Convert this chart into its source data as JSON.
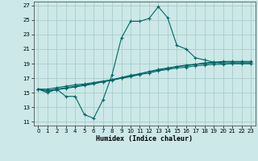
{
  "xlabel": "Humidex (Indice chaleur)",
  "background_color": "#cce8e8",
  "grid_color": "#aacccc",
  "line_color": "#006666",
  "xlim": [
    -0.5,
    23.5
  ],
  "ylim": [
    10.5,
    27.5
  ],
  "yticks": [
    11,
    13,
    15,
    17,
    19,
    21,
    23,
    25,
    27
  ],
  "xticks": [
    0,
    1,
    2,
    3,
    4,
    5,
    6,
    7,
    8,
    9,
    10,
    11,
    12,
    13,
    14,
    15,
    16,
    17,
    18,
    19,
    20,
    21,
    22,
    23
  ],
  "series": [
    {
      "x": [
        0,
        1,
        2,
        3,
        4,
        5,
        6,
        7,
        8,
        9,
        10,
        11,
        12,
        13,
        14,
        15,
        16,
        17,
        18,
        19,
        20,
        21,
        22,
        23
      ],
      "y": [
        15.5,
        15.0,
        15.5,
        14.5,
        14.5,
        12.0,
        11.5,
        14.0,
        17.5,
        22.5,
        24.8,
        24.8,
        25.2,
        26.8,
        25.3,
        21.5,
        21.0,
        19.8,
        19.5,
        19.2,
        19.0,
        19.0,
        19.0,
        19.0
      ]
    },
    {
      "x": [
        0,
        1,
        2,
        3,
        4,
        5,
        6,
        7,
        8,
        9,
        10,
        11,
        12,
        13,
        14,
        15,
        16,
        17,
        18,
        19,
        20,
        21,
        22,
        23
      ],
      "y": [
        15.5,
        15.5,
        15.7,
        15.9,
        16.1,
        16.2,
        16.4,
        16.6,
        16.8,
        17.1,
        17.4,
        17.6,
        17.9,
        18.1,
        18.3,
        18.6,
        18.8,
        18.9,
        19.1,
        19.2,
        19.3,
        19.3,
        19.3,
        19.3
      ]
    },
    {
      "x": [
        0,
        1,
        2,
        3,
        4,
        5,
        6,
        7,
        8,
        9,
        10,
        11,
        12,
        13,
        14,
        15,
        16,
        17,
        18,
        19,
        20,
        21,
        22,
        23
      ],
      "y": [
        15.5,
        15.3,
        15.5,
        15.7,
        15.9,
        16.1,
        16.3,
        16.5,
        16.8,
        17.0,
        17.3,
        17.6,
        17.9,
        18.2,
        18.4,
        18.6,
        18.7,
        18.9,
        19.0,
        19.1,
        19.2,
        19.2,
        19.2,
        19.2
      ]
    },
    {
      "x": [
        0,
        1,
        2,
        3,
        4,
        5,
        6,
        7,
        8,
        9,
        10,
        11,
        12,
        13,
        14,
        15,
        16,
        17,
        18,
        19,
        20,
        21,
        22,
        23
      ],
      "y": [
        15.5,
        15.2,
        15.4,
        15.6,
        15.8,
        16.0,
        16.2,
        16.5,
        16.7,
        17.0,
        17.2,
        17.5,
        17.7,
        18.0,
        18.2,
        18.4,
        18.5,
        18.7,
        18.8,
        18.9,
        18.9,
        19.0,
        19.0,
        19.0
      ]
    }
  ]
}
